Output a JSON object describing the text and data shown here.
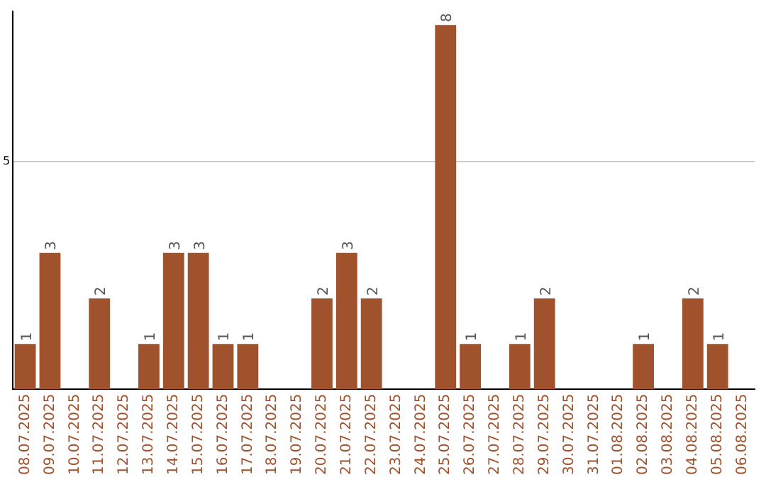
{
  "chart_data": {
    "type": "bar",
    "categories": [
      "08.07.2025",
      "09.07.2025",
      "10.07.2025",
      "11.07.2025",
      "12.07.2025",
      "13.07.2025",
      "14.07.2025",
      "15.07.2025",
      "16.07.2025",
      "17.07.2025",
      "18.07.2025",
      "19.07.2025",
      "20.07.2025",
      "21.07.2025",
      "22.07.2025",
      "23.07.2025",
      "24.07.2025",
      "25.07.2025",
      "26.07.2025",
      "27.07.2025",
      "28.07.2025",
      "29.07.2025",
      "30.07.2025",
      "31.07.2025",
      "01.08.2025",
      "02.08.2025",
      "03.08.2025",
      "04.08.2025",
      "05.08.2025",
      "06.08.2025"
    ],
    "values": [
      1,
      3,
      null,
      2,
      null,
      1,
      3,
      3,
      1,
      1,
      null,
      null,
      2,
      3,
      2,
      null,
      null,
      8,
      1,
      null,
      1,
      2,
      null,
      null,
      null,
      1,
      null,
      2,
      1,
      null
    ],
    "color": "#a0522d",
    "ylim": [
      0,
      8.3
    ],
    "yticks": [
      5
    ],
    "grid": "y",
    "data_labels": true,
    "legend": false
  }
}
